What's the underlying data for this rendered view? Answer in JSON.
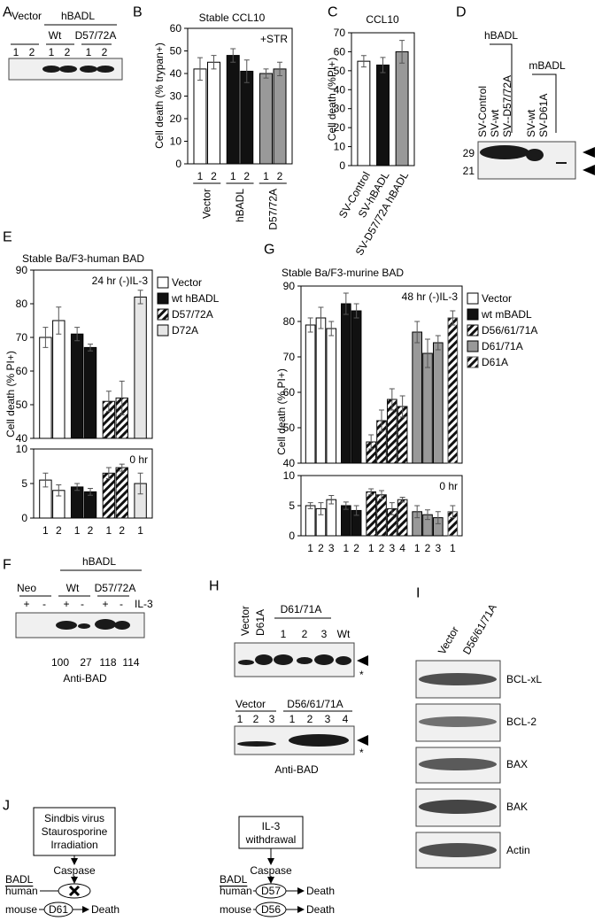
{
  "panel_letters": [
    "A",
    "B",
    "C",
    "D",
    "E",
    "F",
    "G",
    "H",
    "I",
    "J"
  ],
  "chart_data": [
    {
      "type": "bar",
      "title": "Stable CCL10",
      "ylabel": "Cell death (% trypan+)",
      "annotation": "+STR",
      "ylim": [
        0,
        60
      ],
      "yticks": [
        0,
        10,
        20,
        30,
        40,
        50,
        60
      ],
      "series": [
        {
          "name": "Vector",
          "color": "#ffffff",
          "categories": [
            "1",
            "2"
          ],
          "values": [
            42,
            45
          ],
          "errors": [
            5,
            3
          ]
        },
        {
          "name": "hBADL",
          "color": "#111111",
          "categories": [
            "1",
            "2"
          ],
          "values": [
            48,
            41
          ],
          "errors": [
            3,
            5
          ]
        },
        {
          "name": "D57/72A",
          "color": "#999999",
          "categories": [
            "1",
            "2"
          ],
          "values": [
            40,
            42
          ],
          "errors": [
            2,
            3
          ]
        }
      ]
    },
    {
      "type": "bar",
      "title": "CCL10",
      "ylabel": "Cell death (%PI+)",
      "ylim": [
        0,
        70
      ],
      "yticks": [
        0,
        10,
        20,
        30,
        40,
        50,
        60,
        70
      ],
      "series": [
        {
          "name": "SV-Control",
          "color": "#ffffff",
          "values": [
            55
          ],
          "errors": [
            3
          ]
        },
        {
          "name": "SV-hBADL",
          "color": "#111111",
          "values": [
            53
          ],
          "errors": [
            4
          ]
        },
        {
          "name": "SV-D57/72A hBADL",
          "color": "#999999",
          "values": [
            60
          ],
          "errors": [
            6
          ]
        }
      ]
    },
    {
      "type": "bar",
      "title": "Stable Ba/F3-human BAD",
      "ylabel": "Cell death (% PI+)",
      "annotation": "24 hr (-)IL-3",
      "ylim": [
        40,
        90
      ],
      "yticks": [
        40,
        50,
        60,
        70,
        80,
        90
      ],
      "legend": true,
      "series": [
        {
          "name": "Vector",
          "color": "#ffffff",
          "values": [
            70,
            75
          ],
          "errors": [
            3,
            4
          ]
        },
        {
          "name": "wt hBADL",
          "color": "#111111",
          "values": [
            71,
            67
          ],
          "errors": [
            2,
            1
          ]
        },
        {
          "name": "D57/72A",
          "color": "#111111",
          "hatch": true,
          "values": [
            51,
            52
          ],
          "errors": [
            3,
            5
          ]
        },
        {
          "name": "D72A",
          "color": "#e6e6e6",
          "values": [
            82
          ],
          "errors": [
            2
          ]
        }
      ]
    },
    {
      "type": "bar",
      "annotation": "0 hr",
      "ylim": [
        0,
        10
      ],
      "yticks": [
        0,
        5,
        10
      ],
      "series": [
        {
          "color": "#ffffff",
          "categories": [
            "1",
            "2"
          ],
          "values": [
            5.5,
            4
          ],
          "errors": [
            1,
            0.8
          ]
        },
        {
          "color": "#111111",
          "categories": [
            "1",
            "2"
          ],
          "values": [
            4.5,
            3.8
          ],
          "errors": [
            0.5,
            0.5
          ]
        },
        {
          "color": "#111111",
          "hatch": true,
          "categories": [
            "1",
            "2"
          ],
          "values": [
            6.5,
            7.3
          ],
          "errors": [
            0.8,
            0.5
          ]
        },
        {
          "color": "#e6e6e6",
          "categories": [
            "1"
          ],
          "values": [
            5
          ],
          "errors": [
            1.5
          ]
        }
      ]
    },
    {
      "type": "bar",
      "title": "Stable Ba/F3-murine BAD",
      "ylabel": "Cell death (% PI+)",
      "annotation": "48 hr (-)IL-3",
      "ylim": [
        40,
        90
      ],
      "yticks": [
        40,
        50,
        60,
        70,
        80,
        90
      ],
      "legend": true,
      "series": [
        {
          "name": "Vector",
          "color": "#ffffff",
          "values": [
            79,
            81,
            78
          ],
          "errors": [
            2,
            3,
            2
          ]
        },
        {
          "name": "wt mBADL",
          "color": "#111111",
          "values": [
            85,
            83
          ],
          "errors": [
            3,
            2
          ]
        },
        {
          "name": "D56/61/71A",
          "color": "#111111",
          "hatch": true,
          "values": [
            46,
            52,
            58,
            56
          ],
          "errors": [
            2,
            3,
            3,
            3
          ]
        },
        {
          "name": "D61/71A",
          "color": "#999999",
          "values": [
            77,
            71,
            74
          ],
          "errors": [
            3,
            4,
            2
          ]
        },
        {
          "name": "D61A",
          "color": "#555555",
          "hatch": true,
          "values": [
            81
          ],
          "errors": [
            2
          ]
        }
      ]
    },
    {
      "type": "bar",
      "annotation": "0 hr",
      "ylim": [
        0,
        10
      ],
      "yticks": [
        0,
        5,
        10
      ],
      "series": [
        {
          "color": "#ffffff",
          "categories": [
            "1",
            "2",
            "3"
          ],
          "values": [
            5,
            4.5,
            6
          ],
          "errors": [
            0.5,
            1,
            0.7
          ]
        },
        {
          "color": "#111111",
          "categories": [
            "1",
            "2"
          ],
          "values": [
            5,
            4.2
          ],
          "errors": [
            0.6,
            0.8
          ]
        },
        {
          "color": "#111111",
          "hatch": true,
          "categories": [
            "1",
            "2",
            "3",
            "4"
          ],
          "values": [
            7.3,
            6.8,
            4.5,
            6
          ],
          "errors": [
            0.5,
            0.7,
            1,
            0.4
          ]
        },
        {
          "color": "#999999",
          "categories": [
            "1",
            "2",
            "3"
          ],
          "values": [
            4,
            3.5,
            3
          ],
          "errors": [
            1,
            0.8,
            1
          ]
        },
        {
          "color": "#555555",
          "hatch": true,
          "categories": [
            "1"
          ],
          "values": [
            4
          ],
          "errors": [
            1
          ]
        }
      ]
    }
  ],
  "panel_A": {
    "labels": [
      "Vector",
      "hBADL",
      "Wt",
      "D57/72A"
    ],
    "lanes": [
      "1",
      "2",
      "1",
      "2",
      "1",
      "2"
    ]
  },
  "panel_D": {
    "header_left": "hBADL",
    "header_right": "mBADL",
    "lanes": [
      "SV-Control",
      "SV-wt",
      "SV--D57/72A",
      "SV-wt",
      "SV-D61A"
    ],
    "markers": [
      29,
      21
    ]
  },
  "panel_F": {
    "header": "hBADL",
    "groups": [
      "Neo",
      "Wt",
      "D57/72A"
    ],
    "il3": [
      "+",
      "-",
      "+",
      "-",
      "+",
      "-"
    ],
    "il3_label": "IL-3",
    "quantities": [
      100,
      27,
      118,
      114
    ],
    "antibody": "Anti-BAD"
  },
  "panel_H": {
    "top": {
      "lanes_rotated": [
        "Vector",
        "D61A"
      ],
      "group": "D61/71A",
      "lanes": [
        "1",
        "2",
        "3"
      ],
      "wt": "Wt"
    },
    "bottom": {
      "groups": [
        "Vector",
        "D56/61/71A"
      ],
      "lanes": [
        "1",
        "2",
        "3",
        "1",
        "2",
        "3",
        "4"
      ]
    },
    "asterisk": "*",
    "antibody": "Anti-BAD"
  },
  "panel_I": {
    "lanes": [
      "Vector",
      "D56/61/71A"
    ],
    "proteins": [
      "BCL-xL",
      "BCL-2",
      "BAX",
      "BAK",
      "Actin"
    ]
  },
  "panel_J": {
    "left": {
      "inputs": [
        "Sindbis virus",
        "Staurosporine",
        "Irradiation"
      ],
      "enzyme": "Caspase",
      "protein": "BADL",
      "species": [
        "human",
        "mouse"
      ],
      "mouse_site": "D61",
      "outcome": "Death"
    },
    "right": {
      "inputs": [
        "IL-3",
        "withdrawal"
      ],
      "enzyme": "Caspase",
      "protein": "BADL",
      "species": [
        "human",
        "mouse"
      ],
      "sites": [
        "D57",
        "D56"
      ],
      "outcome": "Death"
    }
  }
}
